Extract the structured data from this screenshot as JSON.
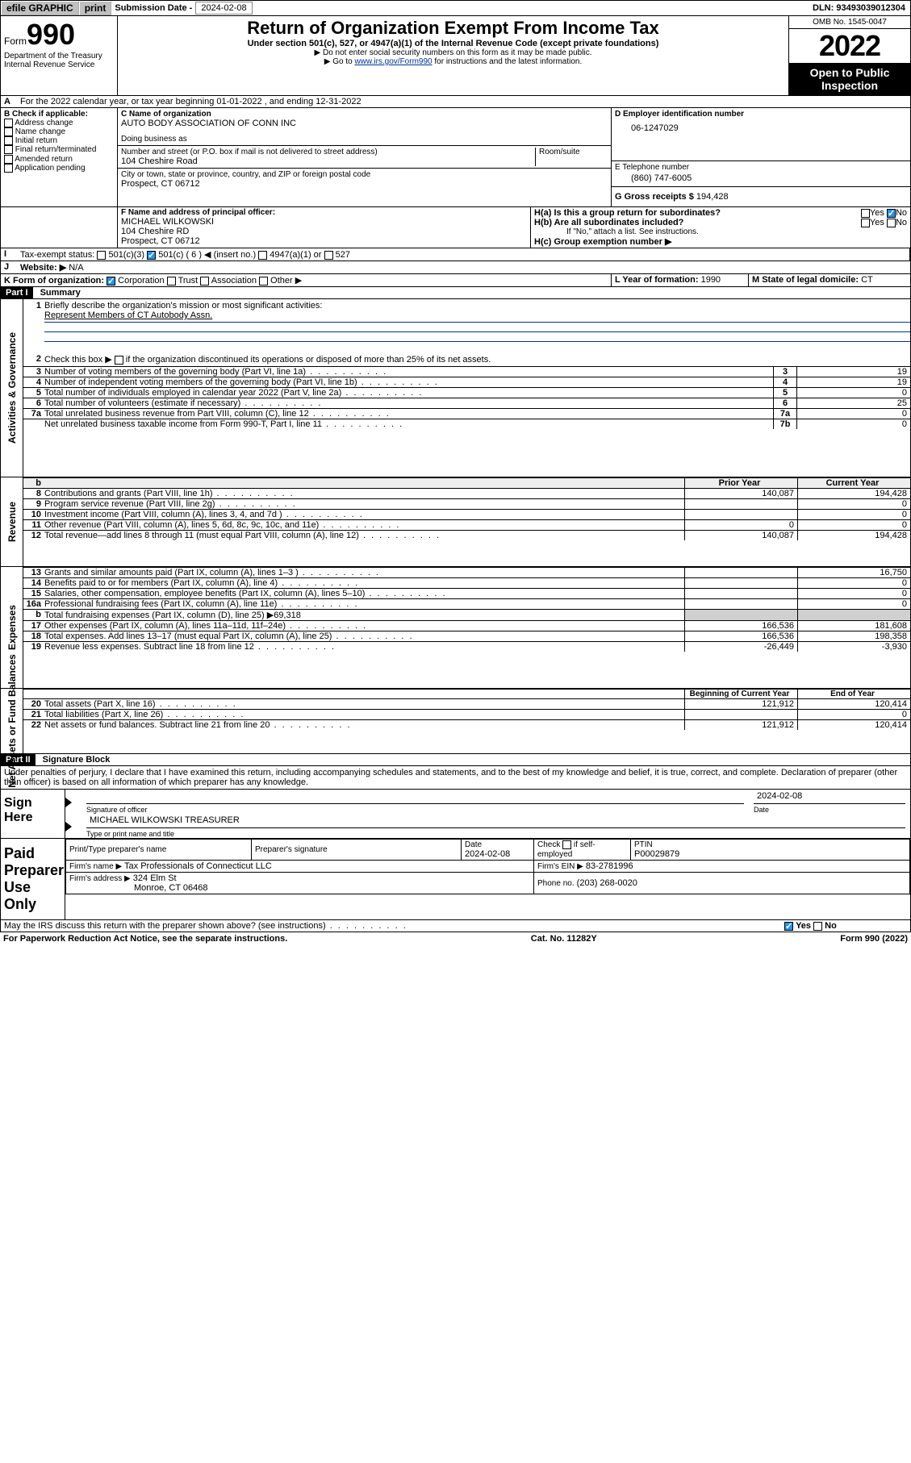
{
  "topbar": {
    "efile": "efile GRAPHIC",
    "print": "print",
    "sub_lbl": "Submission Date - ",
    "sub_date": "2024-02-08",
    "dln": "DLN: 93493039012304"
  },
  "hdr": {
    "form": "Form",
    "n990": "990",
    "dept": "Department of the Treasury",
    "irs": "Internal Revenue Service",
    "title": "Return of Organization Exempt From Income Tax",
    "sub1": "Under section 501(c), 527, or 4947(a)(1) of the Internal Revenue Code (except private foundations)",
    "sub2": "Do not enter social security numbers on this form as it may be made public.",
    "sub3a": "Go to ",
    "sub3_link": "www.irs.gov/Form990",
    "sub3b": " for instructions and the latest information.",
    "omb": "OMB No. 1545-0047",
    "year": "2022",
    "open": "Open to Public Inspection"
  },
  "periodA": "For the 2022 calendar year, or tax year beginning 01-01-2022   , and ending 12-31-2022",
  "boxB": {
    "title": "B Check if applicable:",
    "opts": [
      "Address change",
      "Name change",
      "Initial return",
      "Final return/terminated",
      "Amended return",
      "Application pending"
    ]
  },
  "boxC": {
    "lbl": "C Name of organization",
    "name": "AUTO BODY ASSOCIATION OF CONN INC",
    "dba_lbl": "Doing business as",
    "street_lbl": "Number and street (or P.O. box if mail is not delivered to street address)",
    "room_lbl": "Room/suite",
    "street": "104 Cheshire Road",
    "city_lbl": "City or town, state or province, country, and ZIP or foreign postal code",
    "city": "Prospect, CT  06712"
  },
  "boxD": {
    "lbl": "D Employer identification number",
    "val": "06-1247029"
  },
  "boxE": {
    "lbl": "E Telephone number",
    "val": "(860) 747-6005"
  },
  "boxG": {
    "lbl": "G Gross receipts $",
    "val": "194,428"
  },
  "boxF": {
    "lbl": "F  Name and address of principal officer:",
    "v": "MICHAEL WILKOWSKI\n104 Cheshire RD\nProspect, CT  06712"
  },
  "boxH": {
    "a": "H(a)  Is this a group return for subordinates?",
    "b": "H(b)  Are all subordinates included?",
    "ifno": "If \"No,\" attach a list. See instructions.",
    "c": "H(c)  Group exemption number ▶",
    "yes": "Yes",
    "no": "No"
  },
  "boxI": {
    "lbl": "Tax-exempt status:",
    "o1": "501(c)(3)",
    "o2": "501(c) ( 6 ) ◀ (insert no.)",
    "o3": "4947(a)(1) or",
    "o4": "527"
  },
  "boxJ": {
    "lbl": "Website: ▶",
    "val": "N/A"
  },
  "boxK": {
    "lbl": "K Form of organization:",
    "o1": "Corporation",
    "o2": "Trust",
    "o3": "Association",
    "o4": "Other ▶"
  },
  "boxL": {
    "lbl": "L Year of formation:",
    "val": "1990"
  },
  "boxM": {
    "lbl": "M State of legal domicile:",
    "val": "CT"
  },
  "part1": {
    "hdr": "Part I",
    "title": "Summary"
  },
  "summary": {
    "l1_lbl": "Briefly describe the organization's mission or most significant activities:",
    "l1_val": "Represent Members of CT Autobody Assn.",
    "l2": "Check this box ▶",
    "l2b": " if the organization discontinued its operations or disposed of more than 25% of its net assets.",
    "vlabels": {
      "gov": "Activities & Governance",
      "rev": "Revenue",
      "exp": "Expenses",
      "net": "Net Assets or Fund Balances"
    },
    "cols": {
      "prior": "Prior Year",
      "curr": "Current Year",
      "beg": "Beginning of Current Year",
      "end": "End of Year"
    },
    "rows": [
      {
        "no": "3",
        "txt": "Number of voting members of the governing body (Part VI, line 1a)",
        "box": "3",
        "val": "19"
      },
      {
        "no": "4",
        "txt": "Number of independent voting members of the governing body (Part VI, line 1b)",
        "box": "4",
        "val": "19"
      },
      {
        "no": "5",
        "txt": "Total number of individuals employed in calendar year 2022 (Part V, line 2a)",
        "box": "5",
        "val": "0"
      },
      {
        "no": "6",
        "txt": "Total number of volunteers (estimate if necessary)",
        "box": "6",
        "val": "25"
      },
      {
        "no": "7a",
        "txt": "Total unrelated business revenue from Part VIII, column (C), line 12",
        "box": "7a",
        "val": "0"
      },
      {
        "no": "",
        "txt": "Net unrelated business taxable income from Form 990-T, Part I, line 11",
        "box": "7b",
        "val": "0"
      }
    ],
    "rev": [
      {
        "no": "8",
        "txt": "Contributions and grants (Part VIII, line 1h)",
        "p": "140,087",
        "c": "194,428"
      },
      {
        "no": "9",
        "txt": "Program service revenue (Part VIII, line 2g)",
        "p": "",
        "c": "0"
      },
      {
        "no": "10",
        "txt": "Investment income (Part VIII, column (A), lines 3, 4, and 7d )",
        "p": "",
        "c": "0"
      },
      {
        "no": "11",
        "txt": "Other revenue (Part VIII, column (A), lines 5, 6d, 8c, 9c, 10c, and 11e)",
        "p": "0",
        "c": "0"
      },
      {
        "no": "12",
        "txt": "Total revenue—add lines 8 through 11 (must equal Part VIII, column (A), line 12)",
        "p": "140,087",
        "c": "194,428"
      }
    ],
    "exp": [
      {
        "no": "13",
        "txt": "Grants and similar amounts paid (Part IX, column (A), lines 1–3 )",
        "p": "",
        "c": "16,750"
      },
      {
        "no": "14",
        "txt": "Benefits paid to or for members (Part IX, column (A), line 4)",
        "p": "",
        "c": "0"
      },
      {
        "no": "15",
        "txt": "Salaries, other compensation, employee benefits (Part IX, column (A), lines 5–10)",
        "p": "",
        "c": "0"
      },
      {
        "no": "16a",
        "txt": "Professional fundraising fees (Part IX, column (A), line 11e)",
        "p": "",
        "c": "0"
      },
      {
        "no": "b",
        "txt": "Total fundraising expenses (Part IX, column (D), line 25) ▶69,318",
        "span": true
      },
      {
        "no": "17",
        "txt": "Other expenses (Part IX, column (A), lines 11a–11d, 11f–24e)",
        "p": "166,536",
        "c": "181,608"
      },
      {
        "no": "18",
        "txt": "Total expenses. Add lines 13–17 (must equal Part IX, column (A), line 25)",
        "p": "166,536",
        "c": "198,358"
      },
      {
        "no": "19",
        "txt": "Revenue less expenses. Subtract line 18 from line 12",
        "p": "-26,449",
        "c": "-3,930"
      }
    ],
    "net": [
      {
        "no": "20",
        "txt": "Total assets (Part X, line 16)",
        "p": "121,912",
        "c": "120,414"
      },
      {
        "no": "21",
        "txt": "Total liabilities (Part X, line 26)",
        "p": "",
        "c": "0"
      },
      {
        "no": "22",
        "txt": "Net assets or fund balances. Subtract line 21 from line 20",
        "p": "121,912",
        "c": "120,414"
      }
    ]
  },
  "part2": {
    "hdr": "Part II",
    "title": "Signature Block"
  },
  "penalties": "Under penalties of perjury, I declare that I have examined this return, including accompanying schedules and statements, and to the best of my knowledge and belief, it is true, correct, and complete. Declaration of preparer (other than officer) is based on all information of which preparer has any knowledge.",
  "sign": {
    "here": "Sign Here",
    "sigoff": "Signature of officer",
    "date": "Date",
    "dateval": "2024-02-08",
    "off": "MICHAEL WILKOWSKI TREASURER",
    "offlbl": "Type or print name and title"
  },
  "paid": {
    "hdr": "Paid Preparer Use Only",
    "c1": "Print/Type preparer's name",
    "c2": "Preparer's signature",
    "c3": "Date",
    "c3v": "2024-02-08",
    "c4": "Check",
    "c4b": "if self-employed",
    "c5": "PTIN",
    "c5v": "P00029879",
    "firm_lbl": "Firm's name     ▶",
    "firm": "Tax Professionals of Connecticut LLC",
    "ein_lbl": "Firm's EIN ▶",
    "ein": "83-2781996",
    "addr_lbl": "Firm's address ▶",
    "addr": "324 Elm St",
    "addr2": "Monroe, CT  06468",
    "phone_lbl": "Phone no.",
    "phone": "(203) 268-0020"
  },
  "discuss": "May the IRS discuss this return with the preparer shown above? (see instructions)",
  "footer": {
    "l": "For Paperwork Reduction Act Notice, see the separate instructions.",
    "m": "Cat. No. 11282Y",
    "r": "Form 990 (2022)"
  }
}
